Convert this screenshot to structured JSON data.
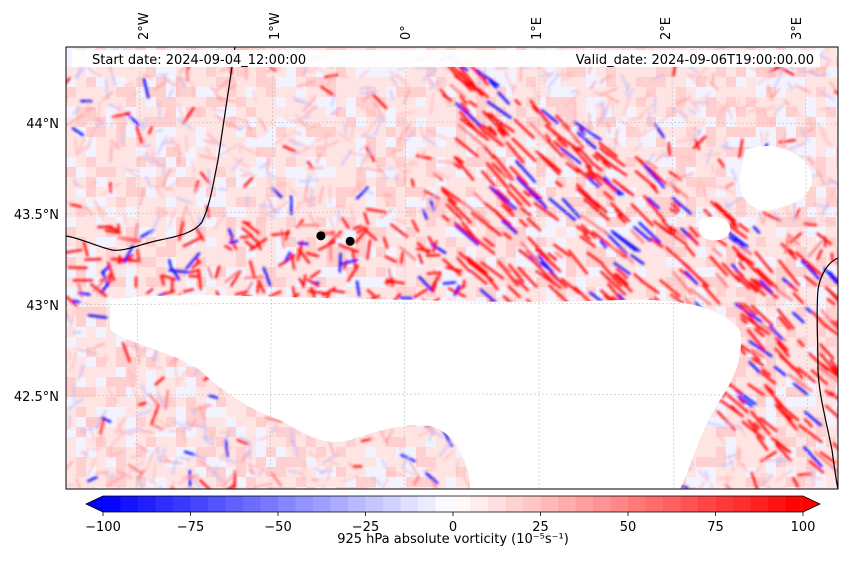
{
  "map": {
    "start_date_text": "Start date: 2024-09-04_12:00:00",
    "valid_date_text": "Valid_date: 2024-09-06T19:00:00.00",
    "lon_ticks": [
      "2°W",
      "1°W",
      "0°",
      "1°E",
      "2°E",
      "3°E"
    ],
    "lat_ticks": [
      "44°N",
      "43.5°N",
      "43°N",
      "42.5°N"
    ],
    "markers": [
      {
        "name": "point-a",
        "lon": -0.64,
        "lat": 43.38
      },
      {
        "name": "point-b",
        "lon": -0.42,
        "lat": 43.35
      }
    ]
  },
  "colorbar": {
    "label_text": "925 hPa absolute vorticity (10⁻⁵s⁻¹)",
    "tick_labels": [
      "−100",
      "−75",
      "−50",
      "−25",
      "0",
      "25",
      "50",
      "75",
      "100"
    ],
    "min": -100,
    "max": 100,
    "low_color": "#0000ff",
    "mid_color": "#ffffff",
    "high_color": "#ff0000"
  },
  "colors": {
    "positive": "#ff0000",
    "negative": "#0000ff",
    "coastline": "#000000"
  }
}
